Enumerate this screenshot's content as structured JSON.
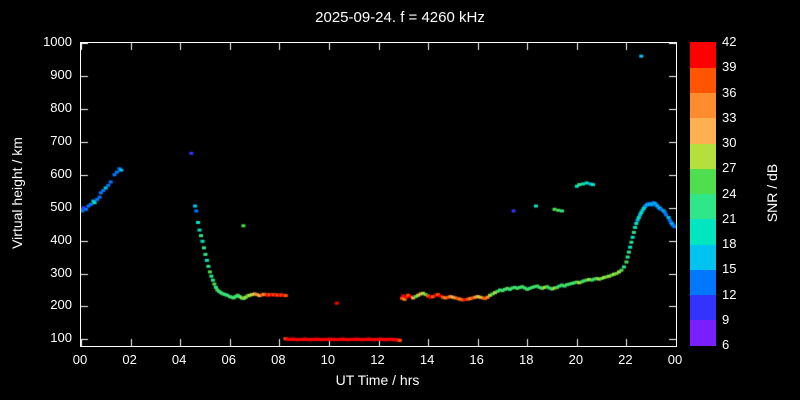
{
  "header": {
    "title": "2025-09-24. f = 4260 kHz"
  },
  "colors": {
    "background": "#000000",
    "text": "#ffffff",
    "axis": "#ffffff"
  },
  "chart_data": {
    "type": "scatter",
    "title": "2025-09-24. f = 4260 kHz",
    "xlabel": "UT Time / hrs",
    "ylabel": "Virtual height / km",
    "xlim": [
      0,
      24
    ],
    "ylim": [
      80,
      1000
    ],
    "grid": false,
    "x_tick_values": [
      0,
      2,
      4,
      6,
      8,
      10,
      12,
      14,
      16,
      18,
      20,
      22,
      24
    ],
    "x_tick_labels": [
      "00",
      "02",
      "04",
      "06",
      "08",
      "10",
      "12",
      "14",
      "16",
      "18",
      "20",
      "22",
      "00"
    ],
    "y_tick_values": [
      100,
      200,
      300,
      400,
      500,
      600,
      700,
      800,
      900,
      1000
    ],
    "y_tick_labels": [
      "100",
      "200",
      "300",
      "400",
      "500",
      "600",
      "700",
      "800",
      "900",
      "1000"
    ],
    "colorbar": {
      "label": "SNR / dB",
      "min": 6,
      "max": 42,
      "tick_values": [
        6,
        9,
        12,
        15,
        18,
        21,
        24,
        27,
        30,
        33,
        36,
        39,
        42
      ],
      "segments": [
        {
          "min": 6,
          "max": 9,
          "color": "#7a1fff"
        },
        {
          "min": 9,
          "max": 12,
          "color": "#3333ff"
        },
        {
          "min": 12,
          "max": 15,
          "color": "#0077ff"
        },
        {
          "min": 15,
          "max": 18,
          "color": "#00c3f0"
        },
        {
          "min": 18,
          "max": 21,
          "color": "#00e6c0"
        },
        {
          "min": 21,
          "max": 24,
          "color": "#2fe689"
        },
        {
          "min": 24,
          "max": 27,
          "color": "#4ede4e"
        },
        {
          "min": 27,
          "max": 30,
          "color": "#b5e03c"
        },
        {
          "min": 30,
          "max": 33,
          "color": "#ffb152"
        },
        {
          "min": 33,
          "max": 36,
          "color": "#ff8c2e"
        },
        {
          "min": 36,
          "max": 39,
          "color": "#ff5500"
        },
        {
          "min": 39,
          "max": 42,
          "color": "#ff0000"
        }
      ]
    },
    "points": [
      [
        0.0,
        495,
        12
      ],
      [
        0.05,
        490,
        12
      ],
      [
        0.1,
        500,
        9
      ],
      [
        0.2,
        495,
        12
      ],
      [
        0.3,
        505,
        12
      ],
      [
        0.4,
        510,
        12
      ],
      [
        0.5,
        520,
        15
      ],
      [
        0.55,
        515,
        18
      ],
      [
        0.65,
        525,
        12
      ],
      [
        0.75,
        532,
        12
      ],
      [
        0.8,
        545,
        12
      ],
      [
        0.9,
        552,
        12
      ],
      [
        1.0,
        560,
        15
      ],
      [
        1.1,
        568,
        12
      ],
      [
        1.2,
        578,
        12
      ],
      [
        1.35,
        600,
        12
      ],
      [
        1.45,
        608,
        12
      ],
      [
        1.55,
        618,
        12
      ],
      [
        1.62,
        614,
        15
      ],
      [
        4.45,
        665,
        9
      ],
      [
        4.6,
        505,
        15
      ],
      [
        4.65,
        490,
        12
      ],
      [
        4.72,
        455,
        18
      ],
      [
        4.78,
        432,
        18
      ],
      [
        4.84,
        415,
        21
      ],
      [
        4.9,
        398,
        18
      ],
      [
        4.96,
        378,
        21
      ],
      [
        5.02,
        358,
        21
      ],
      [
        5.08,
        340,
        18
      ],
      [
        5.14,
        322,
        21
      ],
      [
        5.2,
        305,
        24
      ],
      [
        5.26,
        292,
        21
      ],
      [
        5.32,
        280,
        21
      ],
      [
        5.38,
        268,
        24
      ],
      [
        5.44,
        258,
        21
      ],
      [
        5.5,
        250,
        24
      ],
      [
        5.58,
        245,
        21
      ],
      [
        5.66,
        241,
        21
      ],
      [
        5.74,
        238,
        24
      ],
      [
        5.82,
        236,
        21
      ],
      [
        5.9,
        234,
        21
      ],
      [
        6.0,
        230,
        24
      ],
      [
        6.08,
        228,
        21
      ],
      [
        6.16,
        226,
        24
      ],
      [
        6.24,
        230,
        21
      ],
      [
        6.32,
        234,
        24
      ],
      [
        6.4,
        230,
        21
      ],
      [
        6.48,
        226,
        27
      ],
      [
        6.55,
        445,
        24
      ],
      [
        6.56,
        224,
        24
      ],
      [
        6.64,
        228,
        27
      ],
      [
        6.72,
        232,
        24
      ],
      [
        6.8,
        234,
        27
      ],
      [
        6.9,
        236,
        27
      ],
      [
        7.0,
        238,
        30
      ],
      [
        7.1,
        236,
        33
      ],
      [
        7.2,
        233,
        30
      ],
      [
        7.3,
        235,
        36
      ],
      [
        7.38,
        237,
        33
      ],
      [
        7.46,
        236,
        36
      ],
      [
        7.54,
        234,
        39
      ],
      [
        7.62,
        236,
        36
      ],
      [
        7.7,
        235,
        39
      ],
      [
        7.78,
        236,
        36
      ],
      [
        7.86,
        234,
        39
      ],
      [
        7.94,
        235,
        36
      ],
      [
        8.02,
        234,
        39
      ],
      [
        8.1,
        235,
        36
      ],
      [
        8.18,
        234,
        39
      ],
      [
        8.26,
        233,
        36
      ],
      [
        8.25,
        102,
        36
      ],
      [
        8.32,
        101,
        39
      ],
      [
        8.39,
        100,
        39
      ],
      [
        8.46,
        100,
        42
      ],
      [
        8.53,
        101,
        39
      ],
      [
        8.6,
        100,
        42
      ],
      [
        8.67,
        100,
        39
      ],
      [
        8.74,
        99,
        42
      ],
      [
        8.81,
        100,
        39
      ],
      [
        8.88,
        100,
        42
      ],
      [
        8.95,
        100,
        39
      ],
      [
        9.02,
        101,
        42
      ],
      [
        9.09,
        100,
        39
      ],
      [
        9.16,
        100,
        42
      ],
      [
        9.23,
        99,
        42
      ],
      [
        9.3,
        100,
        39
      ],
      [
        9.37,
        100,
        42
      ],
      [
        9.44,
        100,
        42
      ],
      [
        9.51,
        101,
        39
      ],
      [
        9.58,
        100,
        42
      ],
      [
        9.65,
        100,
        42
      ],
      [
        9.72,
        99,
        39
      ],
      [
        9.79,
        100,
        42
      ],
      [
        9.86,
        100,
        42
      ],
      [
        9.93,
        100,
        39
      ],
      [
        10.0,
        100,
        42
      ],
      [
        10.07,
        101,
        42
      ],
      [
        10.14,
        100,
        39
      ],
      [
        10.21,
        100,
        42
      ],
      [
        10.28,
        99,
        42
      ],
      [
        10.35,
        100,
        42
      ],
      [
        10.42,
        100,
        39
      ],
      [
        10.49,
        100,
        42
      ],
      [
        10.56,
        101,
        42
      ],
      [
        10.63,
        100,
        39
      ],
      [
        10.7,
        100,
        42
      ],
      [
        10.77,
        99,
        42
      ],
      [
        10.84,
        100,
        42
      ],
      [
        10.91,
        100,
        39
      ],
      [
        10.98,
        100,
        42
      ],
      [
        11.05,
        100,
        42
      ],
      [
        11.12,
        101,
        39
      ],
      [
        11.19,
        100,
        42
      ],
      [
        11.26,
        100,
        42
      ],
      [
        11.33,
        99,
        42
      ],
      [
        11.4,
        100,
        39
      ],
      [
        11.47,
        100,
        42
      ],
      [
        11.54,
        100,
        42
      ],
      [
        11.61,
        101,
        39
      ],
      [
        11.68,
        100,
        42
      ],
      [
        11.75,
        100,
        42
      ],
      [
        11.82,
        99,
        39
      ],
      [
        11.89,
        100,
        42
      ],
      [
        11.96,
        100,
        42
      ],
      [
        12.03,
        100,
        39
      ],
      [
        12.1,
        101,
        42
      ],
      [
        12.17,
        100,
        42
      ],
      [
        12.24,
        100,
        39
      ],
      [
        12.31,
        99,
        42
      ],
      [
        12.38,
        100,
        42
      ],
      [
        12.45,
        100,
        39
      ],
      [
        12.52,
        100,
        42
      ],
      [
        12.59,
        100,
        39
      ],
      [
        12.66,
        99,
        39
      ],
      [
        12.73,
        99,
        42
      ],
      [
        12.8,
        98,
        39
      ],
      [
        12.86,
        97,
        36
      ],
      [
        10.32,
        210,
        39
      ],
      [
        12.95,
        225,
        36
      ],
      [
        13.0,
        232,
        39
      ],
      [
        13.05,
        222,
        33
      ],
      [
        13.12,
        228,
        39
      ],
      [
        13.2,
        234,
        36
      ],
      [
        13.3,
        230,
        39
      ],
      [
        13.4,
        226,
        30
      ],
      [
        13.5,
        230,
        24
      ],
      [
        13.6,
        234,
        27
      ],
      [
        13.7,
        238,
        30
      ],
      [
        13.8,
        240,
        27
      ],
      [
        13.9,
        236,
        24
      ],
      [
        14.0,
        232,
        36
      ],
      [
        14.1,
        228,
        39
      ],
      [
        14.2,
        230,
        36
      ],
      [
        14.3,
        234,
        39
      ],
      [
        14.4,
        236,
        36
      ],
      [
        14.5,
        232,
        39
      ],
      [
        14.6,
        228,
        36
      ],
      [
        14.7,
        226,
        33
      ],
      [
        14.8,
        228,
        36
      ],
      [
        14.9,
        230,
        33
      ],
      [
        15.0,
        228,
        30
      ],
      [
        15.1,
        226,
        33
      ],
      [
        15.2,
        224,
        36
      ],
      [
        15.3,
        222,
        33
      ],
      [
        15.4,
        220,
        36
      ],
      [
        15.5,
        221,
        39
      ],
      [
        15.6,
        222,
        36
      ],
      [
        15.7,
        224,
        33
      ],
      [
        15.8,
        226,
        36
      ],
      [
        15.9,
        228,
        33
      ],
      [
        16.0,
        230,
        30
      ],
      [
        16.1,
        228,
        27
      ],
      [
        16.2,
        226,
        33
      ],
      [
        16.3,
        224,
        36
      ],
      [
        16.4,
        228,
        33
      ],
      [
        16.5,
        234,
        27
      ],
      [
        16.6,
        238,
        24
      ],
      [
        16.7,
        242,
        27
      ],
      [
        16.8,
        246,
        24
      ],
      [
        16.9,
        250,
        21
      ],
      [
        17.0,
        248,
        24
      ],
      [
        17.1,
        252,
        21
      ],
      [
        17.2,
        255,
        24
      ],
      [
        17.3,
        252,
        21
      ],
      [
        17.4,
        256,
        24
      ],
      [
        17.5,
        258,
        21
      ],
      [
        17.6,
        255,
        24
      ],
      [
        17.7,
        258,
        21
      ],
      [
        17.8,
        260,
        24
      ],
      [
        17.9,
        256,
        21
      ],
      [
        18.0,
        252,
        24
      ],
      [
        18.1,
        255,
        21
      ],
      [
        18.2,
        258,
        24
      ],
      [
        18.3,
        260,
        21
      ],
      [
        18.4,
        262,
        24
      ],
      [
        18.5,
        258,
        21
      ],
      [
        18.6,
        255,
        24
      ],
      [
        18.7,
        258,
        27
      ],
      [
        18.8,
        260,
        24
      ],
      [
        18.9,
        256,
        21
      ],
      [
        19.0,
        253,
        24
      ],
      [
        19.1,
        256,
        27
      ],
      [
        19.2,
        258,
        24
      ],
      [
        19.3,
        262,
        21
      ],
      [
        19.4,
        265,
        24
      ],
      [
        19.5,
        262,
        21
      ],
      [
        19.6,
        266,
        24
      ],
      [
        19.7,
        268,
        21
      ],
      [
        19.8,
        270,
        24
      ],
      [
        19.9,
        272,
        21
      ],
      [
        20.0,
        274,
        24
      ],
      [
        20.1,
        272,
        27
      ],
      [
        20.2,
        275,
        24
      ],
      [
        20.3,
        278,
        21
      ],
      [
        20.4,
        280,
        24
      ],
      [
        20.5,
        282,
        27
      ],
      [
        20.6,
        280,
        24
      ],
      [
        20.7,
        283,
        21
      ],
      [
        20.8,
        285,
        24
      ],
      [
        20.9,
        283,
        27
      ],
      [
        21.0,
        285,
        24
      ],
      [
        21.1,
        288,
        27
      ],
      [
        21.2,
        290,
        24
      ],
      [
        21.3,
        292,
        27
      ],
      [
        21.4,
        295,
        24
      ],
      [
        21.5,
        298,
        27
      ],
      [
        21.6,
        300,
        24
      ],
      [
        21.7,
        305,
        27
      ],
      [
        21.8,
        310,
        24
      ],
      [
        17.45,
        490,
        9
      ],
      [
        18.35,
        505,
        18
      ],
      [
        19.1,
        495,
        24
      ],
      [
        19.25,
        492,
        24
      ],
      [
        19.4,
        490,
        21
      ],
      [
        20.0,
        565,
        18
      ],
      [
        20.1,
        570,
        21
      ],
      [
        20.25,
        572,
        18
      ],
      [
        20.4,
        575,
        18
      ],
      [
        20.55,
        572,
        15
      ],
      [
        20.65,
        570,
        18
      ],
      [
        21.9,
        320,
        21
      ],
      [
        22.0,
        335,
        24
      ],
      [
        22.05,
        350,
        21
      ],
      [
        22.1,
        365,
        21
      ],
      [
        22.15,
        380,
        18
      ],
      [
        22.2,
        395,
        21
      ],
      [
        22.25,
        410,
        18
      ],
      [
        22.3,
        425,
        21
      ],
      [
        22.35,
        440,
        18
      ],
      [
        22.4,
        452,
        18
      ],
      [
        22.45,
        462,
        15
      ],
      [
        22.5,
        470,
        18
      ],
      [
        22.55,
        478,
        15
      ],
      [
        22.6,
        485,
        18
      ],
      [
        22.6,
        960,
        15
      ],
      [
        22.65,
        492,
        15
      ],
      [
        22.7,
        498,
        18
      ],
      [
        22.75,
        503,
        15
      ],
      [
        22.8,
        507,
        12
      ],
      [
        22.85,
        510,
        15
      ],
      [
        22.9,
        512,
        12
      ],
      [
        22.95,
        510,
        15
      ],
      [
        23.0,
        508,
        12
      ],
      [
        23.05,
        512,
        15
      ],
      [
        23.1,
        515,
        12
      ],
      [
        23.15,
        512,
        15
      ],
      [
        23.2,
        508,
        12
      ],
      [
        23.25,
        505,
        15
      ],
      [
        23.3,
        500,
        12
      ],
      [
        23.35,
        498,
        15
      ],
      [
        23.4,
        495,
        12
      ],
      [
        23.5,
        490,
        15
      ],
      [
        23.55,
        485,
        12
      ],
      [
        23.6,
        478,
        12
      ],
      [
        23.7,
        470,
        15
      ],
      [
        23.75,
        462,
        12
      ],
      [
        23.8,
        455,
        12
      ],
      [
        23.85,
        450,
        15
      ],
      [
        23.9,
        445,
        12
      ],
      [
        23.95,
        442,
        12
      ]
    ]
  }
}
